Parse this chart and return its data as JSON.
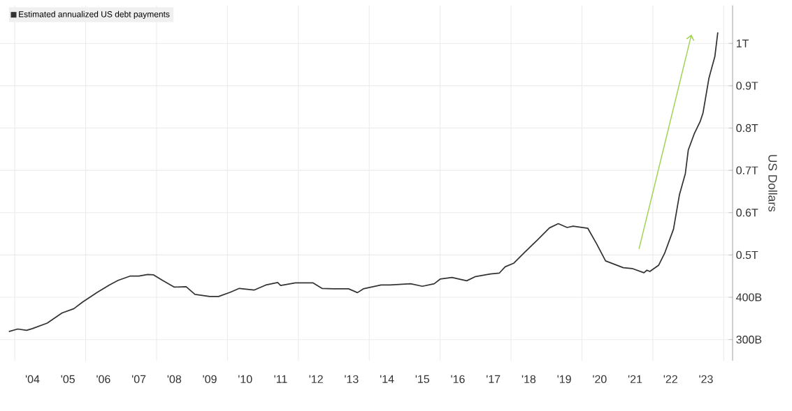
{
  "chart_data": {
    "type": "line",
    "ylabel": "US Dollars",
    "legend": "top left",
    "grid": true,
    "marker": "none",
    "xlim": [
      "2003-08",
      "2024-04"
    ],
    "ylim": [
      250000000000.0,
      1090000000000.0
    ],
    "xticks": [
      {
        "value": "2004-01",
        "label": null
      },
      {
        "value": "2006-01",
        "label": null
      },
      {
        "value": "2008-01",
        "label": null
      },
      {
        "value": "2010-01",
        "label": null
      },
      {
        "value": "2012-01",
        "label": null
      },
      {
        "value": "2014-01",
        "label": null
      },
      {
        "value": "2016-01",
        "label": null
      },
      {
        "value": "2018-01",
        "label": null
      },
      {
        "value": "2020-01",
        "label": null
      },
      {
        "value": "2022-01",
        "label": null
      },
      {
        "value": "2024-01",
        "label": null
      },
      {
        "value": "2004-07",
        "label": "'04"
      },
      {
        "value": "2005-07",
        "label": "'05"
      },
      {
        "value": "2006-07",
        "label": "'06"
      },
      {
        "value": "2007-07",
        "label": "'07"
      },
      {
        "value": "2008-07",
        "label": "'08"
      },
      {
        "value": "2009-07",
        "label": "'09"
      },
      {
        "value": "2010-07",
        "label": "'10"
      },
      {
        "value": "2011-07",
        "label": "'11"
      },
      {
        "value": "2012-07",
        "label": "'12"
      },
      {
        "value": "2013-07",
        "label": "'13"
      },
      {
        "value": "2014-07",
        "label": "'14"
      },
      {
        "value": "2015-07",
        "label": "'15"
      },
      {
        "value": "2016-07",
        "label": "'16"
      },
      {
        "value": "2017-07",
        "label": "'17"
      },
      {
        "value": "2018-07",
        "label": "'18"
      },
      {
        "value": "2019-07",
        "label": "'19"
      },
      {
        "value": "2020-07",
        "label": "'20"
      },
      {
        "value": "2021-07",
        "label": "'21"
      },
      {
        "value": "2022-07",
        "label": "'22"
      },
      {
        "value": "2023-07",
        "label": "'23"
      }
    ],
    "yticks": [
      {
        "value": 300000000000.0,
        "label": "300B"
      },
      {
        "value": 400000000000.0,
        "label": "400B"
      },
      {
        "value": 500000000000.0,
        "label": "0.5T"
      },
      {
        "value": 600000000000.0,
        "label": "0.6T"
      },
      {
        "value": 700000000000.0,
        "label": "0.7T"
      },
      {
        "value": 800000000000.0,
        "label": "0.8T"
      },
      {
        "value": 900000000000.0,
        "label": "0.9T"
      },
      {
        "value": 1000000000000.0,
        "label": "1T"
      }
    ],
    "x": [
      "2003-11",
      "2004-02",
      "2004-05",
      "2004-07",
      "2004-12",
      "2005-05",
      "2005-09",
      "2005-12",
      "2006-05",
      "2006-09",
      "2006-12",
      "2007-04",
      "2007-07",
      "2007-10",
      "2007-12",
      "2008-03",
      "2008-07",
      "2008-11",
      "2009-02",
      "2009-07",
      "2009-10",
      "2010-02",
      "2010-05",
      "2010-10",
      "2011-02",
      "2011-06",
      "2011-07",
      "2011-12",
      "2012-06",
      "2012-09",
      "2013-01",
      "2013-06",
      "2013-09",
      "2013-11",
      "2014-05",
      "2014-08",
      "2015-03",
      "2015-07",
      "2015-11",
      "2016-01",
      "2016-05",
      "2016-10",
      "2017-01",
      "2017-06",
      "2017-09",
      "2017-11",
      "2018-02",
      "2018-05",
      "2018-10",
      "2019-02",
      "2019-05",
      "2019-08",
      "2019-10",
      "2020-03",
      "2020-06",
      "2020-09",
      "2021-03",
      "2021-06",
      "2021-10",
      "2021-11",
      "2021-12",
      "2022-03",
      "2022-05",
      "2022-08",
      "2022-10",
      "2022-12",
      "2023-01",
      "2023-03",
      "2023-05",
      "2023-06",
      "2023-08",
      "2023-10",
      "2023-11"
    ],
    "series": [
      {
        "name": "Estimated annualized US debt payments",
        "color": "#333333",
        "values": [
          319000000000.0,
          325000000000.0,
          322000000000.0,
          326000000000.0,
          339000000000.0,
          363000000000.0,
          373000000000.0,
          389000000000.0,
          412000000000.0,
          429000000000.0,
          440000000000.0,
          450000000000.0,
          450000000000.0,
          454000000000.0,
          453000000000.0,
          440000000000.0,
          424000000000.0,
          425000000000.0,
          407000000000.0,
          402000000000.0,
          402000000000.0,
          412000000000.0,
          421000000000.0,
          417000000000.0,
          429000000000.0,
          435000000000.0,
          428000000000.0,
          434000000000.0,
          434000000000.0,
          421000000000.0,
          420000000000.0,
          420000000000.0,
          411000000000.0,
          420000000000.0,
          429000000000.0,
          429000000000.0,
          432000000000.0,
          426000000000.0,
          432000000000.0,
          443000000000.0,
          447000000000.0,
          439000000000.0,
          449000000000.0,
          455000000000.0,
          457000000000.0,
          472000000000.0,
          481000000000.0,
          502000000000.0,
          536000000000.0,
          564000000000.0,
          574000000000.0,
          565000000000.0,
          568000000000.0,
          563000000000.0,
          526000000000.0,
          486000000000.0,
          470000000000.0,
          468000000000.0,
          458000000000.0,
          464000000000.0,
          461000000000.0,
          476000000000.0,
          504000000000.0,
          561000000000.0,
          642000000000.0,
          692000000000.0,
          748000000000.0,
          786000000000.0,
          815000000000.0,
          836000000000.0,
          918000000000.0,
          969000000000.0,
          1026000000000.0
        ]
      }
    ]
  }
}
